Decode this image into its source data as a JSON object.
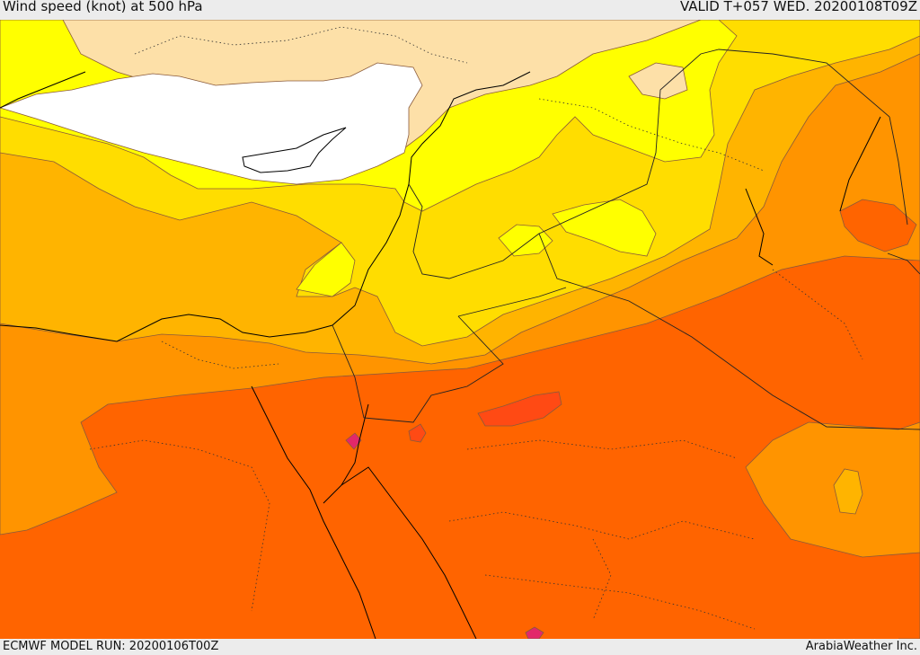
{
  "header": {
    "title": "Wind speed (knot) at 500 hPa",
    "valid": "VALID T+057 WED. 20200108T09Z"
  },
  "footer": {
    "model_run": "ECMWF MODEL RUN: 20200106T00Z",
    "credit": "ArabiaWeather Inc."
  },
  "colors": {
    "white": "#ffffff",
    "land_pale": "#fde0a8",
    "band_yellow": "#ffff00",
    "band_gold": "#ffdd00",
    "band_amber": "#ffb400",
    "band_orange": "#ff9400",
    "band_deep": "#ff6400",
    "band_red": "#ff4a14",
    "band_magenta": "#e2286a"
  }
}
